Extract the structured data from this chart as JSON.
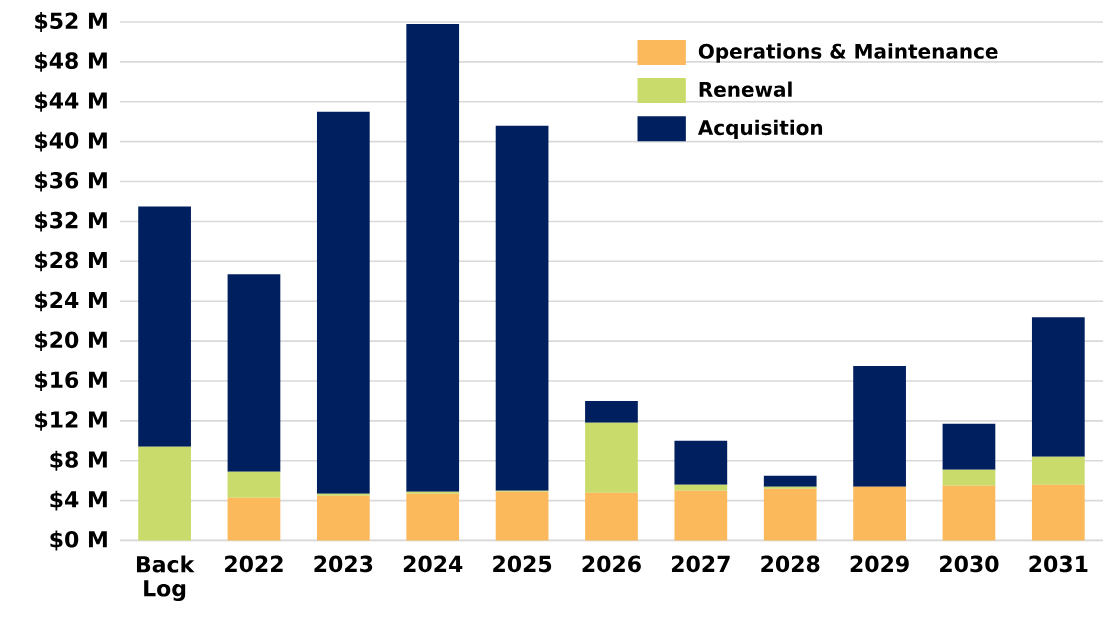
{
  "chart_data": {
    "type": "bar",
    "stacked": true,
    "categories": [
      "Back Log",
      "2022",
      "2023",
      "2024",
      "2025",
      "2026",
      "2027",
      "2028",
      "2029",
      "2030",
      "2031"
    ],
    "series": [
      {
        "name": "Operations & Maintenance",
        "color": "#fbb95b",
        "values": [
          0,
          4.3,
          4.5,
          4.7,
          4.9,
          4.8,
          5.0,
          5.2,
          5.4,
          5.5,
          5.6
        ]
      },
      {
        "name": "Renewal",
        "color": "#c9dc6b",
        "values": [
          9.4,
          2.6,
          0.2,
          0.2,
          0.1,
          7.0,
          0.6,
          0.2,
          0,
          1.6,
          2.8
        ]
      },
      {
        "name": "Acquisition",
        "color": "#001f5f",
        "values": [
          24.1,
          19.8,
          38.3,
          46.9,
          36.6,
          2.2,
          4.4,
          1.1,
          12.1,
          4.6,
          14.0
        ]
      }
    ],
    "ylim": [
      0,
      52
    ],
    "yticks": [
      {
        "value": 0,
        "label": "$0 M"
      },
      {
        "value": 4,
        "label": "$4 M"
      },
      {
        "value": 8,
        "label": "$8 M"
      },
      {
        "value": 12,
        "label": "$12 M"
      },
      {
        "value": 16,
        "label": "$16 M"
      },
      {
        "value": 20,
        "label": "$20 M"
      },
      {
        "value": 24,
        "label": "$24 M"
      },
      {
        "value": 28,
        "label": "$28 M"
      },
      {
        "value": 32,
        "label": "$32 M"
      },
      {
        "value": 36,
        "label": "$36 M"
      },
      {
        "value": 40,
        "label": "$40 M"
      },
      {
        "value": 44,
        "label": "$44 M"
      },
      {
        "value": 48,
        "label": "$48 M"
      },
      {
        "value": 52,
        "label": "$52 M"
      }
    ],
    "grid": "y",
    "legend": "top right"
  }
}
